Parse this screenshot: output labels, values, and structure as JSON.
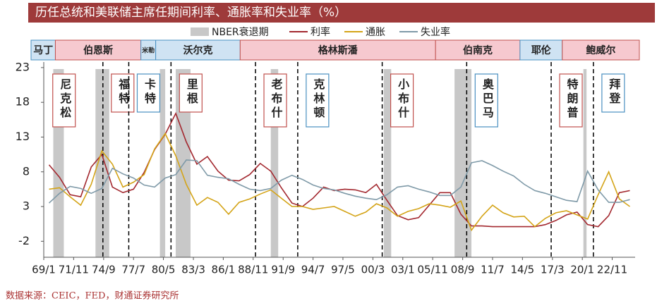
{
  "chart_data": {
    "type": "line",
    "title": "历任总统和美联储主席任期间利率、通胀率和失业率（%）",
    "source": "数据来源：CEIC，FED，财通证券研究所",
    "recession_label": "NBER衰退期",
    "recession_color": "#c8c8c8",
    "x": [
      1969.5,
      1970.5,
      1971.5,
      1972.5,
      1973.5,
      1974.5,
      1975.5,
      1976.5,
      1977.5,
      1978.5,
      1979.5,
      1980.5,
      1981.5,
      1982.5,
      1983.5,
      1984.5,
      1985.5,
      1986.5,
      1987.5,
      1988.5,
      1989.5,
      1990.5,
      1991.5,
      1992.5,
      1993.5,
      1994.5,
      1995.5,
      1996.5,
      1997.5,
      1998.5,
      1999.5,
      2000.5,
      2001.5,
      2002.5,
      2003.5,
      2004.5,
      2005.5,
      2006.5,
      2007.5,
      2008.5,
      2009.5,
      2010.5,
      2011.5,
      2012.5,
      2013.5,
      2014.5,
      2015.5,
      2016.5,
      2017.5,
      2018.5,
      2019.5,
      2020.5,
      2021.5,
      2022.5,
      2023.5,
      2024.5
    ],
    "series": [
      {
        "name": "利率",
        "color": "#a3282f",
        "values": [
          9,
          7.2,
          4.7,
          4.4,
          8.7,
          10.5,
          5.8,
          5.0,
          5.5,
          7.9,
          11.2,
          13.4,
          16.4,
          12.3,
          9.1,
          10.2,
          8.1,
          6.8,
          6.7,
          7.6,
          9.2,
          8.1,
          5.7,
          3.5,
          3.0,
          4.2,
          5.8,
          5.3,
          5.5,
          5.4,
          5.0,
          6.2,
          3.9,
          1.7,
          1.1,
          1.4,
          3.2,
          5.0,
          5.0,
          1.9,
          0.2,
          0.2,
          0.1,
          0.1,
          0.1,
          0.1,
          0.1,
          0.4,
          1.0,
          1.8,
          2.2,
          0.4,
          0.1,
          1.7,
          5.0,
          5.3
        ]
      },
      {
        "name": "通胀",
        "color": "#d4a418",
        "values": [
          5.5,
          5.7,
          4.4,
          3.2,
          6.2,
          11.0,
          9.1,
          5.8,
          6.5,
          7.6,
          11.3,
          13.5,
          10.3,
          6.2,
          3.2,
          4.3,
          3.6,
          1.9,
          3.6,
          4.1,
          4.8,
          5.4,
          4.2,
          3.0,
          3.0,
          2.6,
          2.8,
          3.0,
          2.3,
          1.6,
          2.2,
          3.4,
          2.8,
          1.6,
          2.3,
          2.7,
          3.4,
          3.2,
          2.9,
          3.8,
          -0.4,
          1.6,
          3.2,
          2.1,
          1.5,
          1.6,
          0.1,
          1.3,
          2.1,
          2.4,
          1.8,
          1.2,
          4.7,
          8.0,
          4.1,
          3.0
        ]
      },
      {
        "name": "失业率",
        "color": "#7f9aa8",
        "values": [
          3.5,
          4.9,
          5.9,
          5.6,
          4.9,
          5.6,
          8.5,
          7.7,
          7.1,
          6.1,
          5.8,
          7.1,
          7.6,
          9.7,
          9.6,
          7.5,
          7.2,
          7.0,
          6.2,
          5.5,
          5.3,
          5.6,
          6.8,
          7.5,
          6.9,
          6.1,
          5.6,
          5.4,
          4.9,
          4.5,
          4.2,
          4.0,
          4.7,
          5.8,
          6.0,
          5.5,
          5.1,
          4.6,
          4.6,
          5.8,
          9.3,
          9.6,
          8.9,
          8.1,
          7.4,
          6.2,
          5.3,
          4.9,
          4.4,
          3.9,
          3.7,
          8.1,
          5.4,
          3.6,
          3.6,
          4.0
        ]
      }
    ],
    "xlim": [
      1969,
      2025
    ],
    "xticks": [
      {
        "value": 1969.0,
        "label": "69/1"
      },
      {
        "value": 1971.83,
        "label": "71/11"
      },
      {
        "value": 1974.67,
        "label": "74/9"
      },
      {
        "value": 1977.5,
        "label": "77/7"
      },
      {
        "value": 1980.33,
        "label": "80/5"
      },
      {
        "value": 1983.17,
        "label": "83/3"
      },
      {
        "value": 1986.0,
        "label": "86/1"
      },
      {
        "value": 1988.83,
        "label": "88/11"
      },
      {
        "value": 1991.67,
        "label": "91/9"
      },
      {
        "value": 1994.5,
        "label": "94/7"
      },
      {
        "value": 1997.33,
        "label": "97/5"
      },
      {
        "value": 2000.17,
        "label": "00/3"
      },
      {
        "value": 2003.0,
        "label": "03/1"
      },
      {
        "value": 2005.83,
        "label": "05/11"
      },
      {
        "value": 2008.67,
        "label": "08/9"
      },
      {
        "value": 2011.5,
        "label": "11/7"
      },
      {
        "value": 2014.33,
        "label": "14/5"
      },
      {
        "value": 2017.17,
        "label": "17/3"
      },
      {
        "value": 2020.0,
        "label": "20/1"
      },
      {
        "value": 2022.83,
        "label": "22/11"
      }
    ],
    "ylim": [
      -4.3,
      23.8
    ],
    "yticks": [
      -2,
      3,
      8,
      13,
      18,
      23
    ],
    "recessions": [
      {
        "start": 1969.9,
        "end": 1970.9
      },
      {
        "start": 1973.9,
        "end": 1975.2
      },
      {
        "start": 1980.0,
        "end": 1980.5
      },
      {
        "start": 1981.5,
        "end": 1982.9
      },
      {
        "start": 1990.5,
        "end": 1991.2
      },
      {
        "start": 2001.2,
        "end": 2001.9
      },
      {
        "start": 2007.9,
        "end": 2009.5
      },
      {
        "start": 2020.1,
        "end": 2020.4
      }
    ],
    "chairs": [
      {
        "name": "马丁",
        "start": 1969,
        "color": "#cfe3f3",
        "border": "#4a90c0"
      },
      {
        "name": "伯恩斯",
        "start": 1970.1,
        "color": "#f6c9cf",
        "border": "#c0504d"
      },
      {
        "name": "米勒",
        "start": 1978.2,
        "color": "#cfe3f3",
        "border": "#4a90c0"
      },
      {
        "name": "沃尔克",
        "start": 1979.6,
        "color": "#cfe3f3",
        "border": "#4a90c0"
      },
      {
        "name": "格林斯潘",
        "start": 1987.6,
        "color": "#f6c9cf",
        "border": "#c0504d"
      },
      {
        "name": "伯南克",
        "start": 2006.1,
        "color": "#f6c9cf",
        "border": "#c0504d"
      },
      {
        "name": "耶伦",
        "start": 2014.1,
        "color": "#cfe3f3",
        "border": "#4a90c0"
      },
      {
        "name": "鲍威尔",
        "start": 2018.1,
        "color": "#f6c9cf",
        "border": "#c0504d"
      }
    ],
    "presidents": [
      {
        "name": "尼克松",
        "start": 1969.05,
        "color": "#c0504d"
      },
      {
        "name": "福特",
        "start": 1974.6,
        "color": "#c0504d"
      },
      {
        "name": "卡特",
        "start": 1977.05,
        "color": "#4a90c0"
      },
      {
        "name": "里根",
        "start": 1981.05,
        "color": "#c0504d"
      },
      {
        "name": "老布什",
        "start": 1989.05,
        "color": "#c0504d"
      },
      {
        "name": "克林顿",
        "start": 1993.05,
        "color": "#4a90c0"
      },
      {
        "name": "小布什",
        "start": 2001.05,
        "color": "#c0504d"
      },
      {
        "name": "奥巴马",
        "start": 2009.05,
        "color": "#4a90c0"
      },
      {
        "name": "特朗普",
        "start": 2017.05,
        "color": "#c0504d"
      },
      {
        "name": "拜登",
        "start": 2021.05,
        "color": "#4a90c0"
      }
    ]
  }
}
